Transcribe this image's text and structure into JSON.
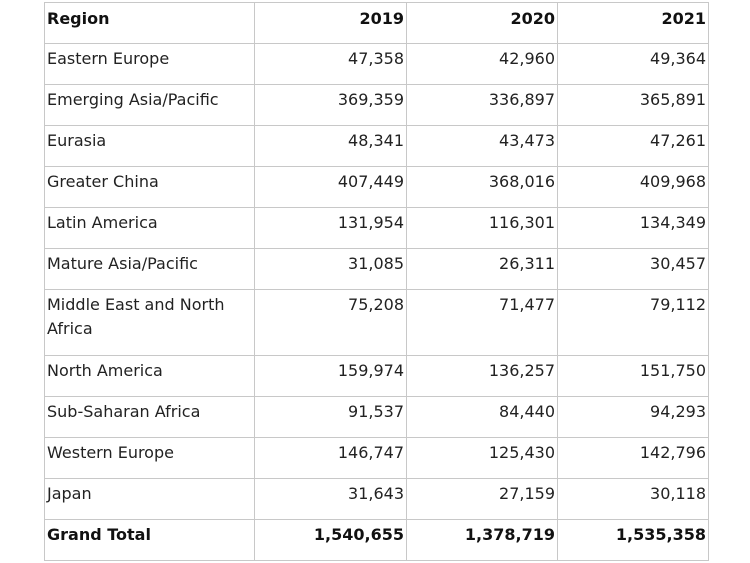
{
  "table": {
    "headers": [
      "Region",
      "2019",
      "2020",
      "2021"
    ],
    "rows": [
      [
        "Eastern Europe",
        "47,358",
        "42,960",
        "49,364"
      ],
      [
        "Emerging Asia/Pacific",
        "369,359",
        "336,897",
        "365,891"
      ],
      [
        "Eurasia",
        "48,341",
        "43,473",
        "47,261"
      ],
      [
        "Greater China",
        "407,449",
        "368,016",
        "409,968"
      ],
      [
        "Latin America",
        "131,954",
        "116,301",
        "134,349"
      ],
      [
        "Mature Asia/Pacific",
        "31,085",
        "26,311",
        "30,457"
      ],
      [
        "Middle East and North Africa",
        "75,208",
        "71,477",
        "79,112"
      ],
      [
        "North America",
        "159,974",
        "136,257",
        "151,750"
      ],
      [
        "Sub-Saharan Africa",
        "91,537",
        "84,440",
        "94,293"
      ],
      [
        "Western Europe",
        "146,747",
        "125,430",
        "142,796"
      ],
      [
        "Japan",
        "31,643",
        "27,159",
        "30,118"
      ]
    ],
    "total": [
      "Grand Total",
      "1,540,655",
      "1,378,719",
      "1,535,358"
    ]
  }
}
